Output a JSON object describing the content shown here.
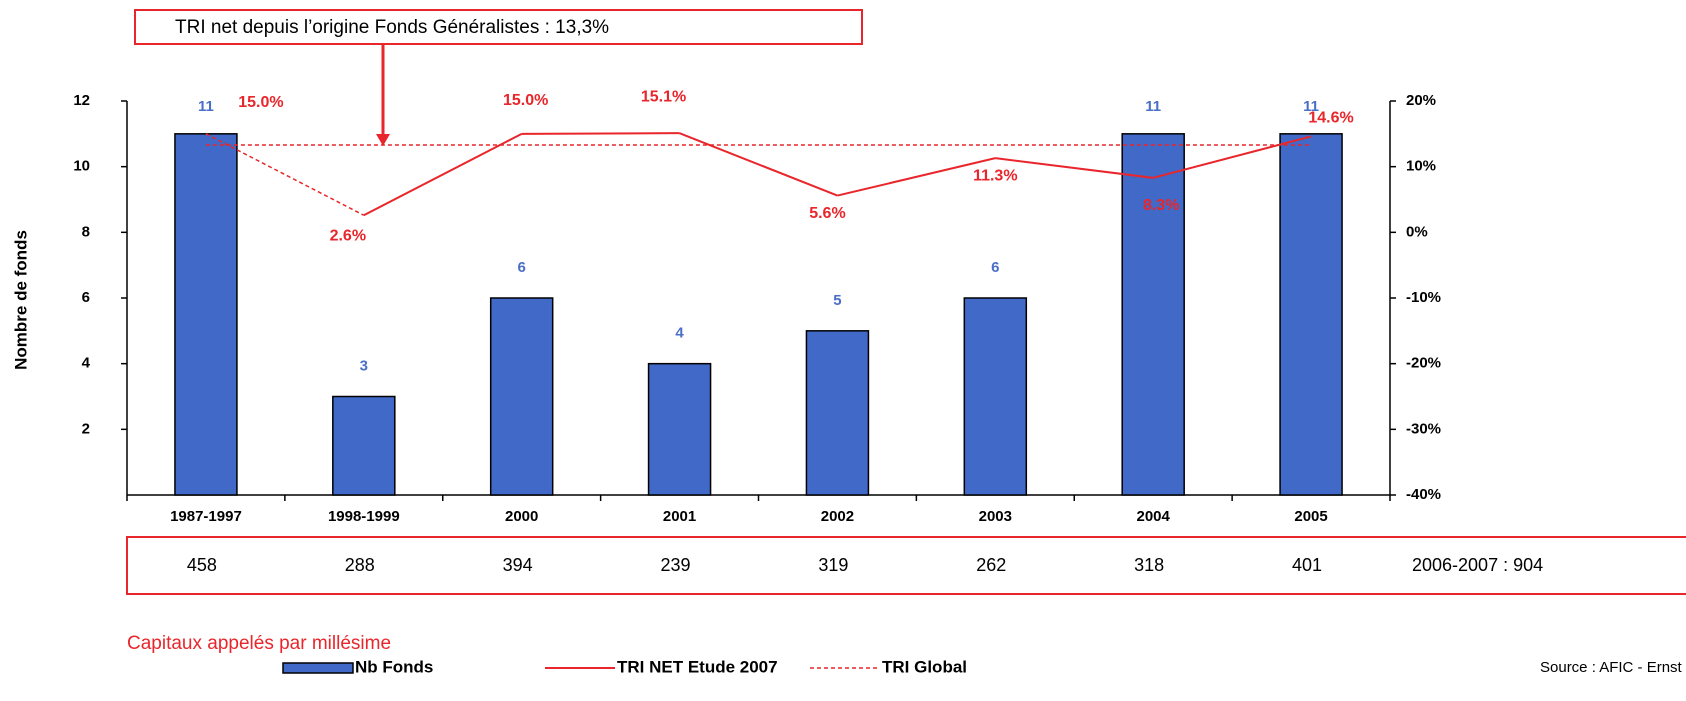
{
  "chart_data": {
    "type": "bar_line",
    "annotation": "TRI net depuis l’origine Fonds Généralistes : 13,3%",
    "y_label": "Nombre de fonds",
    "categories": [
      "1987-1997",
      "1998-1999",
      "2000",
      "2001",
      "2002",
      "2003",
      "2004",
      "2005"
    ],
    "ylim": [
      0,
      12
    ],
    "yticks": [
      2,
      4,
      6,
      8,
      10,
      12
    ],
    "y2lim": [
      -40,
      20
    ],
    "y2ticks": [
      {
        "value": -40,
        "label": "-40%"
      },
      {
        "value": -30,
        "label": "-30%"
      },
      {
        "value": -20,
        "label": "-20%"
      },
      {
        "value": -10,
        "label": "-10%"
      },
      {
        "value": 0,
        "label": "0%"
      },
      {
        "value": 10,
        "label": "10%"
      },
      {
        "value": 20,
        "label": "20%"
      }
    ],
    "series": [
      {
        "name": "Nb Fonds",
        "type": "bar",
        "color": "#4169c8",
        "label_color": "#4a6fc8",
        "values": [
          11,
          3,
          6,
          4,
          5,
          6,
          11,
          11
        ]
      },
      {
        "name": "TRI NET Etude 2007",
        "type": "line",
        "axis": "y2",
        "color": "#e8262b",
        "dashed_segments": [
          0
        ],
        "values": [
          15.0,
          2.6,
          15.0,
          15.1,
          5.6,
          11.3,
          8.3,
          14.6
        ],
        "value_labels": [
          "15.0%",
          "2.6%",
          "15.0%",
          "15.1%",
          "5.6%",
          "11.3%",
          "8.3%",
          "14.6%"
        ]
      },
      {
        "name": "TRI Global",
        "type": "line",
        "axis": "y2",
        "color": "#e8262b",
        "dash": true,
        "values": [
          13.3,
          13.3,
          13.3,
          13.3,
          13.3,
          13.3,
          13.3,
          13.3
        ]
      }
    ],
    "capital_calls": {
      "title": "Capitaux appelés par millésime",
      "values": [
        458,
        288,
        394,
        239,
        319,
        262,
        318,
        401
      ],
      "extra": "2006-2007 : 904"
    },
    "source": "Source : AFIC - Ernst"
  }
}
